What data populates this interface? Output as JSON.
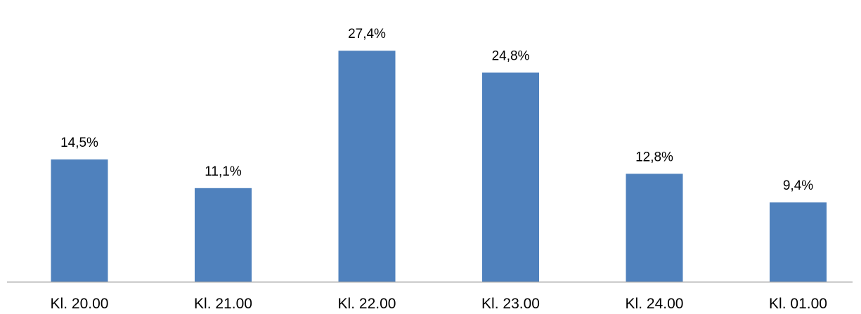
{
  "chart_data": {
    "type": "bar",
    "categories": [
      "Kl. 20.00",
      "Kl. 21.00",
      "Kl. 22.00",
      "Kl. 23.00",
      "Kl. 24.00",
      "Kl. 01.00"
    ],
    "values": [
      14.5,
      11.1,
      27.4,
      24.8,
      12.8,
      9.4
    ],
    "data_labels": [
      "14,5%",
      "11,1%",
      "27,4%",
      "24,8%",
      "12,8%",
      "9,4%"
    ],
    "title": "",
    "xlabel": "",
    "ylabel": "",
    "ylim": [
      0,
      30
    ],
    "grid": false,
    "legend": "none",
    "colors": {
      "bar": "#4f81bd",
      "axis": "#a6a6a6"
    }
  }
}
